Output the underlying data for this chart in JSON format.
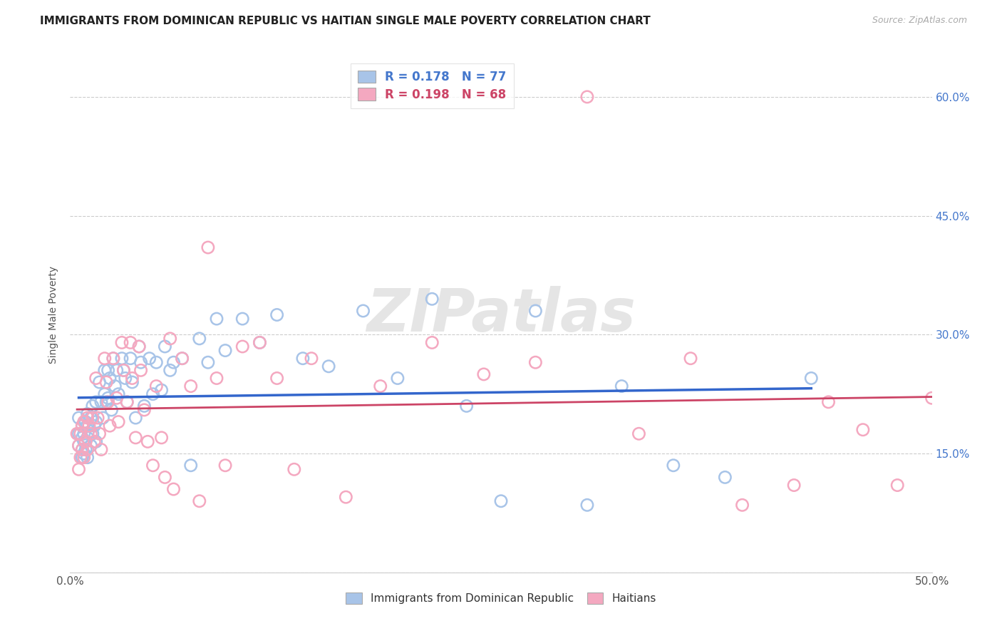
{
  "title": "IMMIGRANTS FROM DOMINICAN REPUBLIC VS HAITIAN SINGLE MALE POVERTY CORRELATION CHART",
  "source": "Source: ZipAtlas.com",
  "ylabel": "Single Male Poverty",
  "xlim": [
    0.0,
    0.5
  ],
  "ylim": [
    0.0,
    0.65
  ],
  "xtick_positions": [
    0.0,
    0.1,
    0.2,
    0.3,
    0.4,
    0.5
  ],
  "xticklabels": [
    "0.0%",
    "",
    "",
    "",
    "",
    "50.0%"
  ],
  "ytick_positions": [
    0.0,
    0.15,
    0.3,
    0.45,
    0.6
  ],
  "yticklabels_right": [
    "",
    "15.0%",
    "30.0%",
    "45.0%",
    "60.0%"
  ],
  "legend_r1": "R = 0.178",
  "legend_n1": "N = 77",
  "legend_r2": "R = 0.198",
  "legend_n2": "N = 68",
  "legend_bottom_label1": "Immigrants from Dominican Republic",
  "legend_bottom_label2": "Haitians",
  "blue_scatter_color": "#a8c4e8",
  "pink_scatter_color": "#f4a8c0",
  "blue_line_color": "#3366cc",
  "pink_line_color": "#cc4466",
  "tick_label_color": "#4477cc",
  "watermark": "ZIPatlas",
  "title_fontsize": 11,
  "axis_label_fontsize": 10,
  "tick_fontsize": 11,
  "blue_x": [
    0.005,
    0.005,
    0.005,
    0.007,
    0.007,
    0.007,
    0.007,
    0.008,
    0.008,
    0.008,
    0.009,
    0.009,
    0.01,
    0.01,
    0.01,
    0.01,
    0.012,
    0.012,
    0.013,
    0.013,
    0.014,
    0.015,
    0.015,
    0.015,
    0.017,
    0.018,
    0.019,
    0.02,
    0.02,
    0.021,
    0.022,
    0.022,
    0.023,
    0.024,
    0.025,
    0.026,
    0.027,
    0.028,
    0.03,
    0.031,
    0.032,
    0.033,
    0.035,
    0.036,
    0.038,
    0.04,
    0.041,
    0.043,
    0.046,
    0.048,
    0.05,
    0.053,
    0.055,
    0.058,
    0.06,
    0.065,
    0.07,
    0.075,
    0.08,
    0.085,
    0.09,
    0.1,
    0.11,
    0.12,
    0.135,
    0.15,
    0.17,
    0.19,
    0.21,
    0.23,
    0.25,
    0.27,
    0.3,
    0.32,
    0.35,
    0.38,
    0.43
  ],
  "blue_y": [
    0.195,
    0.175,
    0.16,
    0.185,
    0.17,
    0.155,
    0.145,
    0.175,
    0.165,
    0.15,
    0.19,
    0.155,
    0.2,
    0.185,
    0.17,
    0.145,
    0.195,
    0.16,
    0.21,
    0.175,
    0.185,
    0.215,
    0.19,
    0.165,
    0.24,
    0.215,
    0.195,
    0.255,
    0.225,
    0.215,
    0.255,
    0.22,
    0.245,
    0.205,
    0.27,
    0.235,
    0.255,
    0.225,
    0.27,
    0.255,
    0.245,
    0.215,
    0.27,
    0.24,
    0.195,
    0.285,
    0.265,
    0.21,
    0.27,
    0.225,
    0.265,
    0.23,
    0.285,
    0.255,
    0.265,
    0.27,
    0.135,
    0.295,
    0.265,
    0.32,
    0.28,
    0.32,
    0.29,
    0.325,
    0.27,
    0.26,
    0.33,
    0.245,
    0.345,
    0.21,
    0.09,
    0.33,
    0.085,
    0.235,
    0.135,
    0.12,
    0.245
  ],
  "pink_x": [
    0.004,
    0.005,
    0.005,
    0.006,
    0.006,
    0.007,
    0.007,
    0.008,
    0.008,
    0.009,
    0.01,
    0.01,
    0.011,
    0.012,
    0.013,
    0.014,
    0.015,
    0.016,
    0.017,
    0.018,
    0.02,
    0.021,
    0.022,
    0.023,
    0.025,
    0.027,
    0.028,
    0.03,
    0.031,
    0.033,
    0.035,
    0.036,
    0.038,
    0.04,
    0.041,
    0.043,
    0.045,
    0.048,
    0.05,
    0.053,
    0.055,
    0.058,
    0.06,
    0.065,
    0.07,
    0.075,
    0.08,
    0.085,
    0.09,
    0.1,
    0.11,
    0.12,
    0.13,
    0.14,
    0.16,
    0.18,
    0.21,
    0.24,
    0.27,
    0.3,
    0.33,
    0.36,
    0.39,
    0.42,
    0.44,
    0.46,
    0.48,
    0.5
  ],
  "pink_y": [
    0.175,
    0.16,
    0.13,
    0.175,
    0.145,
    0.185,
    0.155,
    0.19,
    0.145,
    0.165,
    0.195,
    0.155,
    0.185,
    0.175,
    0.195,
    0.165,
    0.245,
    0.195,
    0.175,
    0.155,
    0.27,
    0.24,
    0.215,
    0.185,
    0.27,
    0.22,
    0.19,
    0.29,
    0.255,
    0.215,
    0.29,
    0.245,
    0.17,
    0.285,
    0.255,
    0.205,
    0.165,
    0.135,
    0.235,
    0.17,
    0.12,
    0.295,
    0.105,
    0.27,
    0.235,
    0.09,
    0.41,
    0.245,
    0.135,
    0.285,
    0.29,
    0.245,
    0.13,
    0.27,
    0.095,
    0.235,
    0.29,
    0.25,
    0.265,
    0.6,
    0.175,
    0.27,
    0.085,
    0.11,
    0.215,
    0.18,
    0.11,
    0.22
  ]
}
